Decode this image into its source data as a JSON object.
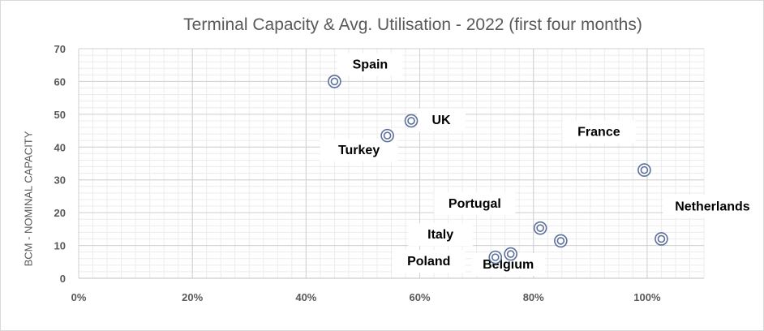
{
  "chart_data": {
    "type": "scatter",
    "title": "Terminal Capacity & Avg. Utilisation - 2022 (first four months)",
    "xlabel": "",
    "ylabel": "BCM - NOMINAL CAPACITY",
    "xlim": [
      0,
      1.1
    ],
    "ylim": [
      0,
      70
    ],
    "x_ticks": [
      "0%",
      "20%",
      "40%",
      "60%",
      "80%",
      "100%"
    ],
    "y_ticks": [
      "0",
      "10",
      "20",
      "30",
      "40",
      "50",
      "60",
      "70"
    ],
    "grid": true,
    "legend": "none",
    "marker_color": "#5b6f9b",
    "points": [
      {
        "label": "Spain",
        "x": 0.45,
        "y": 60
      },
      {
        "label": "UK",
        "x": 0.585,
        "y": 48
      },
      {
        "label": "Turkey",
        "x": 0.543,
        "y": 43.5
      },
      {
        "label": "France",
        "x": 0.995,
        "y": 33
      },
      {
        "label": "Italy",
        "x": 0.812,
        "y": 15.3
      },
      {
        "label": "Netherlands",
        "x": 1.025,
        "y": 12
      },
      {
        "label": "Portugal",
        "x": 0.848,
        "y": 11.4
      },
      {
        "label": "Poland",
        "x": 0.733,
        "y": 6.4
      },
      {
        "label": "Belgium",
        "x": 0.76,
        "y": 7.4
      }
    ]
  }
}
